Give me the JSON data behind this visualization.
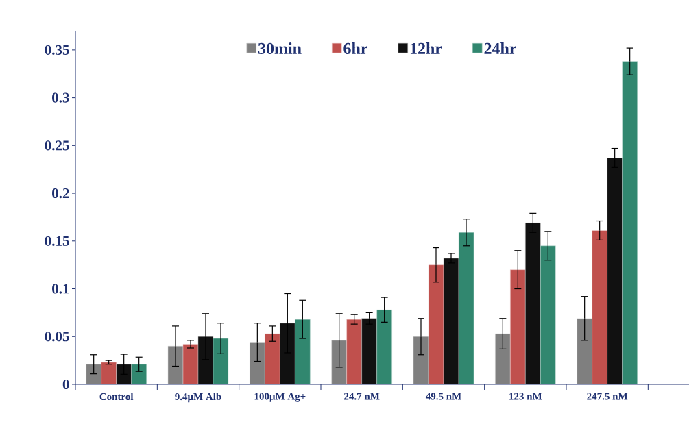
{
  "chart_data": {
    "type": "bar",
    "categories": [
      "Control",
      "9.4μM Alb",
      "100μM Ag+",
      "24.7 nM",
      "49.5 nM",
      "123 nM",
      "247.5 nM"
    ],
    "series": [
      {
        "name": "30min",
        "color": "#7f7f7f",
        "values": [
          0.021,
          0.04,
          0.044,
          0.046,
          0.05,
          0.053,
          0.069
        ],
        "errors": [
          0.01,
          0.021,
          0.02,
          0.028,
          0.019,
          0.016,
          0.023
        ]
      },
      {
        "name": "6hr",
        "color": "#c0504d",
        "values": [
          0.023,
          0.042,
          0.053,
          0.068,
          0.125,
          0.12,
          0.161
        ],
        "errors": [
          0.002,
          0.004,
          0.008,
          0.005,
          0.018,
          0.02,
          0.01
        ]
      },
      {
        "name": "12hr",
        "color": "#111111",
        "values": [
          0.021,
          0.05,
          0.064,
          0.069,
          0.132,
          0.169,
          0.237
        ],
        "errors": [
          0.0105,
          0.024,
          0.031,
          0.006,
          0.005,
          0.01,
          0.01
        ]
      },
      {
        "name": "24hr",
        "color": "#31876f",
        "values": [
          0.021,
          0.048,
          0.068,
          0.078,
          0.159,
          0.145,
          0.338
        ],
        "errors": [
          0.0075,
          0.016,
          0.02,
          0.013,
          0.014,
          0.015,
          0.014
        ]
      }
    ],
    "ylim": [
      0,
      0.37
    ],
    "yticks": [
      0,
      0.05,
      0.1,
      0.15,
      0.2,
      0.25,
      0.3,
      0.35
    ],
    "legend": "top"
  }
}
